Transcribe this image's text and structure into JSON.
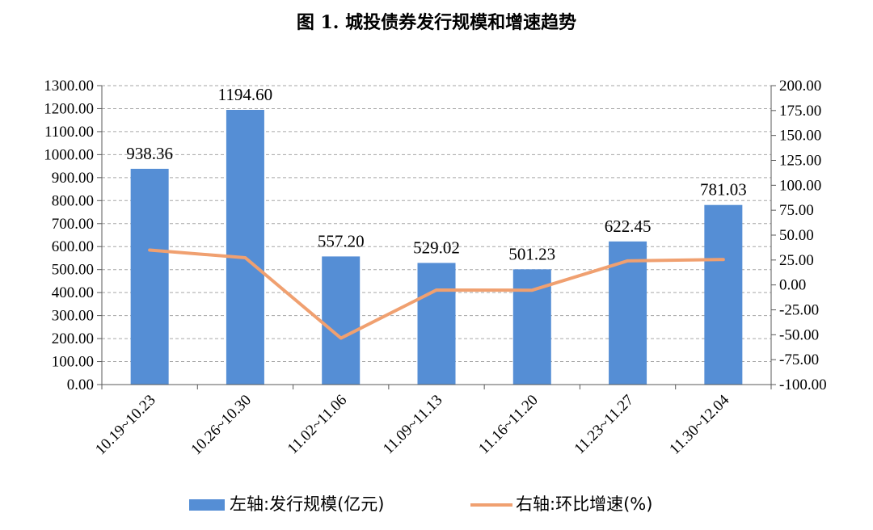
{
  "chart_data": {
    "type": "bar",
    "title": "图 1. 城投债券发行规模和增速趋势",
    "categories": [
      "10.19~10.23",
      "10.26~10.30",
      "11.02~11.06",
      "11.09~11.13",
      "11.16~11.20",
      "11.23~11.27",
      "11.30~12.04"
    ],
    "series": [
      {
        "name": "左轴:发行规模(亿元)",
        "type": "bar",
        "axis": "left",
        "color": "#558ED5",
        "values": [
          938.36,
          1194.6,
          557.2,
          529.02,
          501.23,
          622.45,
          781.03
        ],
        "labels": [
          "938.36",
          "1194.60",
          "557.20",
          "529.02",
          "501.23",
          "622.45",
          "781.03"
        ]
      },
      {
        "name": "右轴:环比增速(%)",
        "type": "line",
        "axis": "right",
        "color": "#F0A070",
        "values": [
          35.0,
          27.3,
          -53.4,
          -5.1,
          -5.3,
          24.2,
          25.5
        ]
      }
    ],
    "ylim_left": [
      0,
      1300
    ],
    "ylim_right": [
      -100,
      200
    ],
    "yticks_left": [
      "0.00",
      "100.00",
      "200.00",
      "300.00",
      "400.00",
      "500.00",
      "600.00",
      "700.00",
      "800.00",
      "900.00",
      "1000.00",
      "1100.00",
      "1200.00",
      "1300.00"
    ],
    "yticks_right": [
      "-100.00",
      "-75.00",
      "-50.00",
      "-25.00",
      "0.00",
      "25.00",
      "50.00",
      "75.00",
      "100.00",
      "125.00",
      "150.00",
      "175.00",
      "200.00"
    ],
    "grid": true,
    "legend_position": "bottom"
  }
}
